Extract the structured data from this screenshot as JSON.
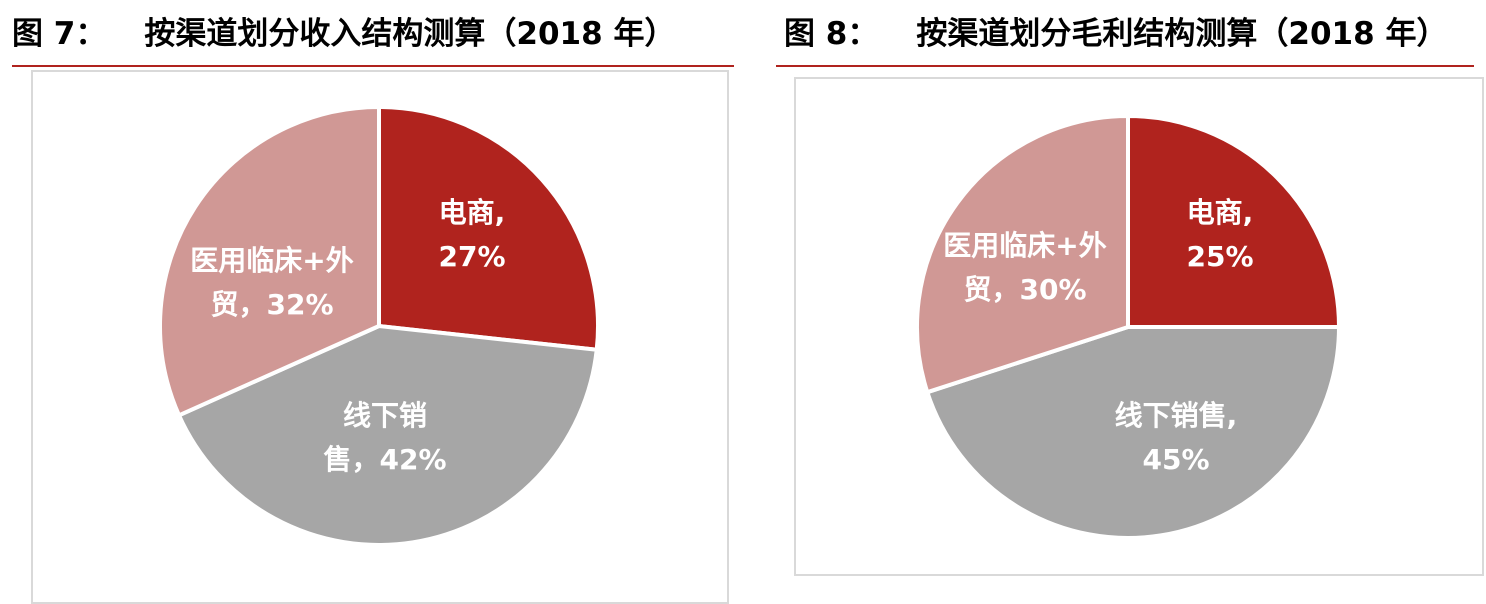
{
  "figures": [
    {
      "number": "图 7：",
      "title": "按渠道划分收入结构测算（2018 年）",
      "chart_data": {
        "type": "pie",
        "title": "",
        "slices": [
          {
            "name": "电商",
            "value": 27,
            "label_lines": [
              "电商,",
              "27%"
            ],
            "color": "#b0231e"
          },
          {
            "name": "线下销售",
            "value": 42,
            "label_lines": [
              "线下销",
              "售，42%"
            ],
            "color": "#a6a6a6"
          },
          {
            "name": "医用临床+外贸",
            "value": 32,
            "label_lines": [
              "医用临床+外",
              "贸，32%"
            ],
            "color": "#d09895"
          }
        ]
      }
    },
    {
      "number": "图 8：",
      "title": "按渠道划分毛利结构测算（2018 年）",
      "chart_data": {
        "type": "pie",
        "title": "",
        "slices": [
          {
            "name": "电商",
            "value": 25,
            "label_lines": [
              "电商,",
              "25%"
            ],
            "color": "#b0231e"
          },
          {
            "name": "线下销售",
            "value": 45,
            "label_lines": [
              "线下销售,",
              "45%"
            ],
            "color": "#a6a6a6"
          },
          {
            "name": "医用临床+外贸",
            "value": 30,
            "label_lines": [
              "医用临床+外",
              "贸，30%"
            ],
            "color": "#d09895"
          }
        ]
      }
    }
  ]
}
